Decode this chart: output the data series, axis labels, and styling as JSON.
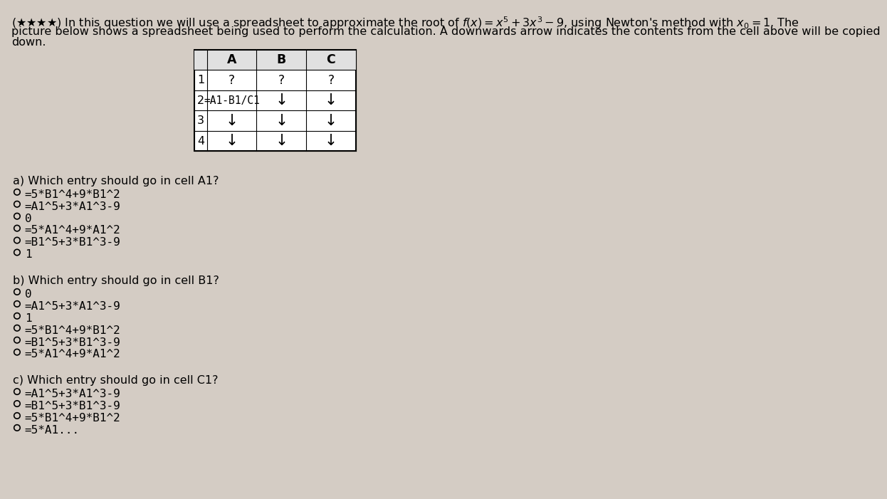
{
  "bg_color": "#d4ccc4",
  "text_color": "#000000",
  "font_size_title": 11.5,
  "font_size_body": 11.5,
  "title_line1": "($\\bigstar\\bigstar\\bigstar\\bigstar$) In this question we will use a spreadsheet to approximate the root of $f(x) = x^5 + 3x^3 - 9$, using Newton's method with $x_0 = 1$. The",
  "title_line2": "picture below shows a spreadsheet being used to perform the calculation. A downwards arrow indicates the contents from the cell above will be copied",
  "title_line3": "down.",
  "table_col_headers": [
    "A",
    "B",
    "C"
  ],
  "table_row_labels": [
    "1",
    "2",
    "3",
    "4"
  ],
  "cell_A1": "?",
  "cell_B1": "?",
  "cell_C1": "?",
  "cell_A2": "=A1-B1/C1",
  "arrow": "↓",
  "part_a_question": "a) Which entry should go in cell A1?",
  "part_a_options": [
    "=5*B1^4+9*B1^2",
    "=A1^5+3*A1^3-9",
    "0",
    "=5*A1^4+9*A1^2",
    "=B1^5+3*B1^3-9",
    "1"
  ],
  "part_b_question": "b) Which entry should go in cell B1?",
  "part_b_options": [
    "0",
    "=A1^5+3*A1^3-9",
    "1",
    "=5*B1^4+9*B1^2",
    "=B1^5+3*B1^3-9",
    "=5*A1^4+9*A1^2"
  ],
  "part_c_question": "c) Which entry should go in cell C1?",
  "part_c_options": [
    "=A1^5+3*A1^3-9",
    "=B1^5+3*B1^3-9",
    "=5*B1^4+9*B1^2"
  ],
  "part_c_last_option": "=5*A1..."
}
